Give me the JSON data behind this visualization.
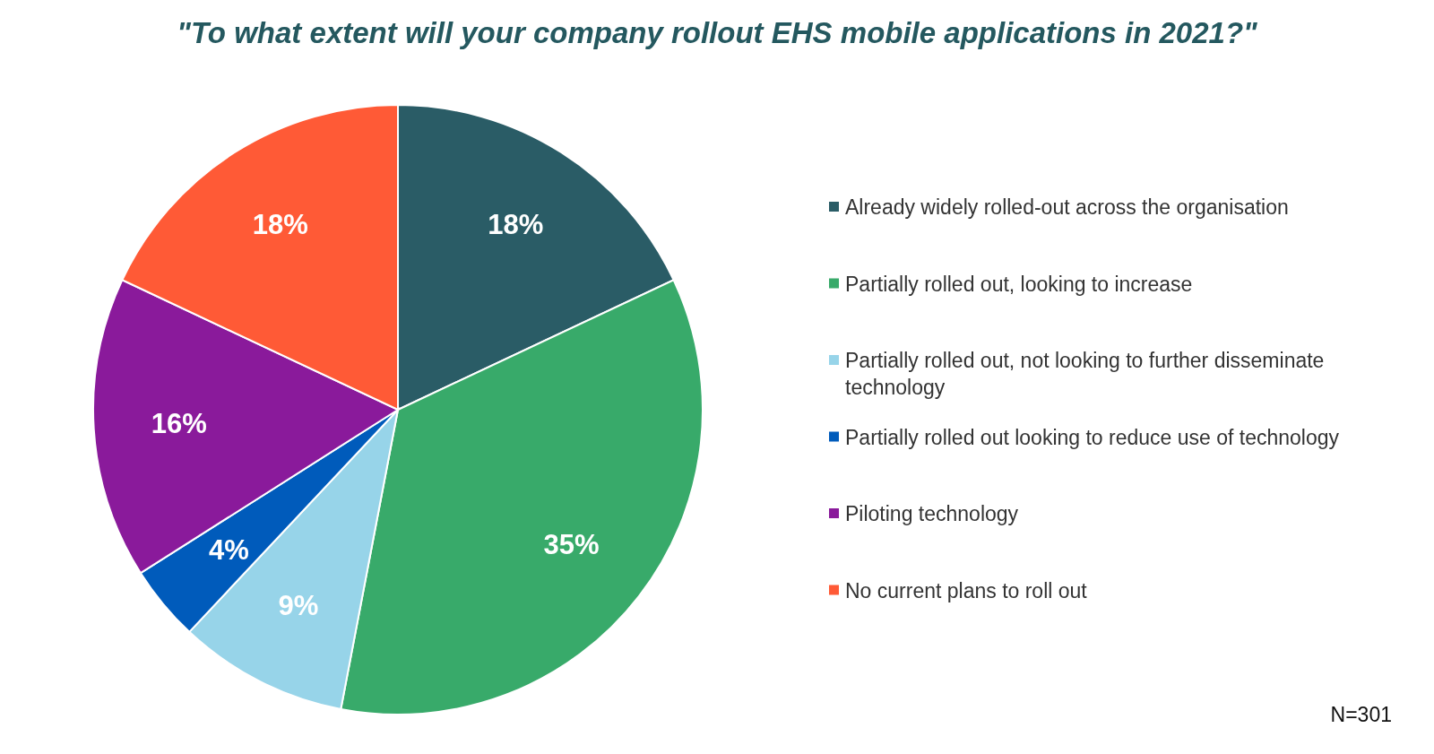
{
  "chart_data": {
    "type": "pie",
    "title": "\"To what extent will your company rollout EHS mobile applications in 2021?\"",
    "categories": [
      "Already widely rolled-out across the organisation",
      "Partially rolled out, looking to increase",
      "Partially rolled out, not looking to further disseminate technology",
      "Partially rolled out looking to reduce use of technology",
      "Piloting technology",
      "No current plans to roll out"
    ],
    "values": [
      18,
      35,
      9,
      4,
      16,
      18
    ],
    "value_labels": [
      "18%",
      "35%",
      "9%",
      "4%",
      "16%",
      "18%"
    ],
    "colors": [
      "#2a5c66",
      "#38aa6a",
      "#97d4e9",
      "#005bbb",
      "#8a1a9b",
      "#ff5a36"
    ],
    "legend": "right",
    "annotations": [
      "N=301"
    ]
  }
}
